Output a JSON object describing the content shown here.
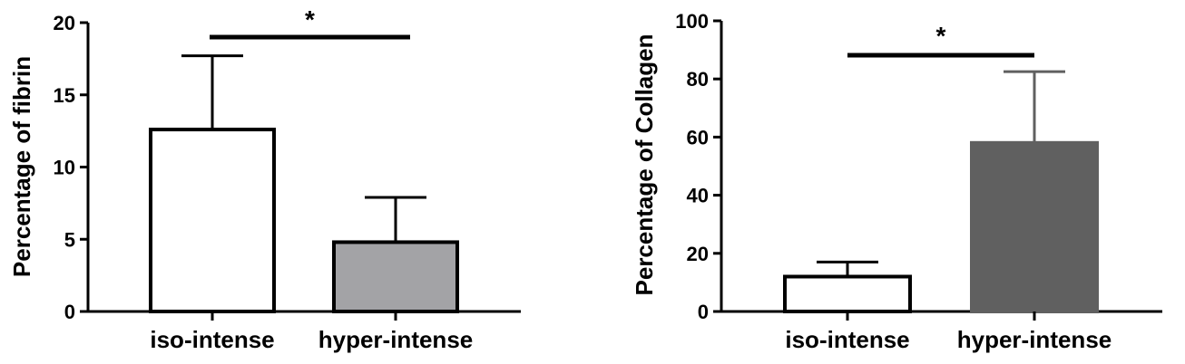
{
  "chart_data": [
    {
      "type": "bar",
      "categories": [
        "iso-intense",
        "hyper-intense"
      ],
      "values": [
        12.6,
        4.8
      ],
      "errors": [
        5.1,
        3.1
      ],
      "colors": [
        "#ffffff",
        "#a3a3a6"
      ],
      "edge_colors": [
        "#000000",
        "#000000"
      ],
      "error_colors": [
        "#000000",
        "#000000"
      ],
      "ylabel": "Percentage of fibrin",
      "xlabel": "",
      "title": "",
      "ylim": [
        0,
        20
      ],
      "yticks": [
        "0",
        "5",
        "10",
        "15",
        "20"
      ],
      "grid": false,
      "significance": {
        "label": "*",
        "between": [
          "iso-intense",
          "hyper-intense"
        ]
      }
    },
    {
      "type": "bar",
      "categories": [
        "iso-intense",
        "hyper-intense"
      ],
      "values": [
        12,
        58
      ],
      "errors": [
        5,
        24.5
      ],
      "colors": [
        "#ffffff",
        "#606060"
      ],
      "edge_colors": [
        "#000000",
        "#606060"
      ],
      "error_colors": [
        "#000000",
        "#606060"
      ],
      "ylabel": "Percentage of Collagen",
      "xlabel": "",
      "title": "",
      "ylim": [
        0,
        100
      ],
      "yticks": [
        "0",
        "20",
        "40",
        "60",
        "80",
        "100"
      ],
      "grid": false,
      "significance": {
        "label": "*",
        "between": [
          "iso-intense",
          "hyper-intense"
        ]
      }
    }
  ]
}
